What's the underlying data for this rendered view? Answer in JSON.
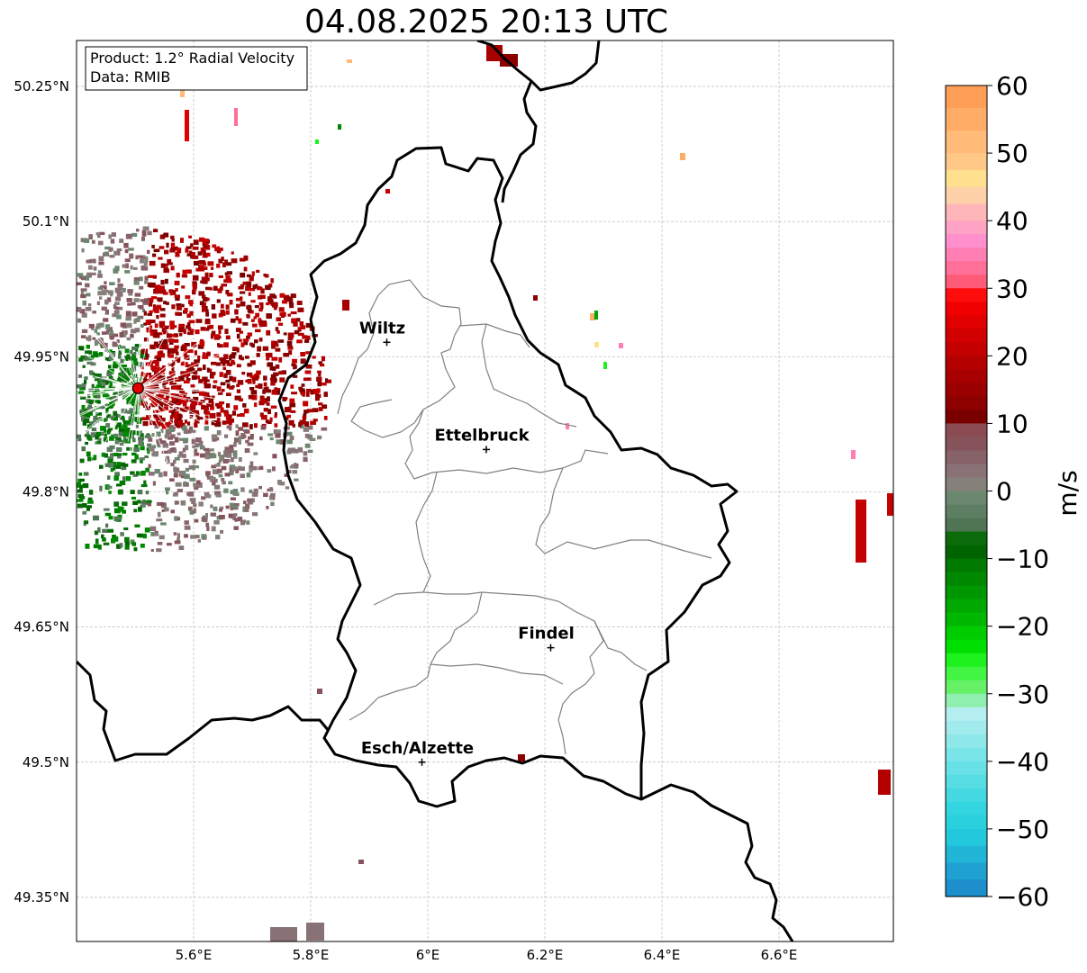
{
  "title": "04.08.2025 20:13 UTC",
  "info_box": {
    "product": "Product: 1.2° Radial Velocity",
    "data_source": "Data: RMIB"
  },
  "lat_ticks": [
    "50.25°N",
    "50.1°N",
    "49.95°N",
    "49.8°N",
    "49.65°N",
    "49.5°N",
    "49.35°N"
  ],
  "lon_ticks": [
    "5.6°E",
    "5.8°E",
    "6°E",
    "6.2°E",
    "6.4°E",
    "6.6°E"
  ],
  "cities": [
    {
      "name": "Wiltz",
      "lon": 5.93,
      "lat": 49.966
    },
    {
      "name": "Ettelbruck",
      "lon": 6.1,
      "lat": 49.847
    },
    {
      "name": "Findel",
      "lon": 6.21,
      "lat": 49.627
    },
    {
      "name": "Esch/Alzette",
      "lon": 5.99,
      "lat": 49.5
    }
  ],
  "radar_site": {
    "lon": 5.505,
    "lat": 49.915
  },
  "colorbar": {
    "unit": "m/s",
    "min": -60,
    "max": 60,
    "tick_labels": [
      "60",
      "50",
      "40",
      "30",
      "20",
      "10",
      "0",
      "−10",
      "−20",
      "−30",
      "−40",
      "−50",
      "−60"
    ],
    "bands": [
      {
        "from": 50,
        "to": 60,
        "colors": [
          "#ff9e57",
          "#ffad66",
          "#ffbb77"
        ]
      },
      {
        "from": 40,
        "to": 50,
        "colors": [
          "#ffc886",
          "#ffe08f",
          "#ffd1a8",
          "#ffb6b9"
        ]
      },
      {
        "from": 30,
        "to": 40,
        "colors": [
          "#ffa3c4",
          "#ff8fcd",
          "#ff7fb5",
          "#ff6f97",
          "#ff5a78"
        ]
      },
      {
        "from": 20,
        "to": 30,
        "colors": [
          "#ff0d0d",
          "#f00000",
          "#e00000",
          "#d20000",
          "#c40000"
        ]
      },
      {
        "from": 10,
        "to": 20,
        "colors": [
          "#b50000",
          "#a80000",
          "#9a0000",
          "#8c0000",
          "#7a0000"
        ]
      },
      {
        "from": 0,
        "to": 10,
        "colors": [
          "#8a4b52",
          "#87535b",
          "#876268",
          "#887275",
          "#86807a"
        ]
      },
      {
        "from": -10,
        "to": 0,
        "colors": [
          "#6c8770",
          "#5e7e63",
          "#4f7554",
          "#0b6b0b",
          "#006400"
        ]
      },
      {
        "from": -20,
        "to": -10,
        "colors": [
          "#007a00",
          "#008900",
          "#009800",
          "#00a800",
          "#00b800"
        ]
      },
      {
        "from": -30,
        "to": -20,
        "colors": [
          "#00cc00",
          "#00e000",
          "#1ef21e",
          "#42f542",
          "#66f066"
        ]
      },
      {
        "from": -40,
        "to": -30,
        "colors": [
          "#8fefaf",
          "#b4eef0",
          "#a2ebec",
          "#8ee8ea",
          "#7ae5e8"
        ]
      },
      {
        "from": -50,
        "to": -40,
        "colors": [
          "#68e1e6",
          "#56dde4",
          "#44d9e2",
          "#33d5e0",
          "#2bd0de"
        ]
      },
      {
        "from": -60,
        "to": -50,
        "colors": [
          "#23c8dc",
          "#21b5d7",
          "#1fa2d2",
          "#1d8fcc"
        ]
      }
    ]
  },
  "palette": {
    "border_black": "#000000",
    "canton_gray": "#808080",
    "grid": "#bbbbbb",
    "radar_dot": "#e00000"
  }
}
